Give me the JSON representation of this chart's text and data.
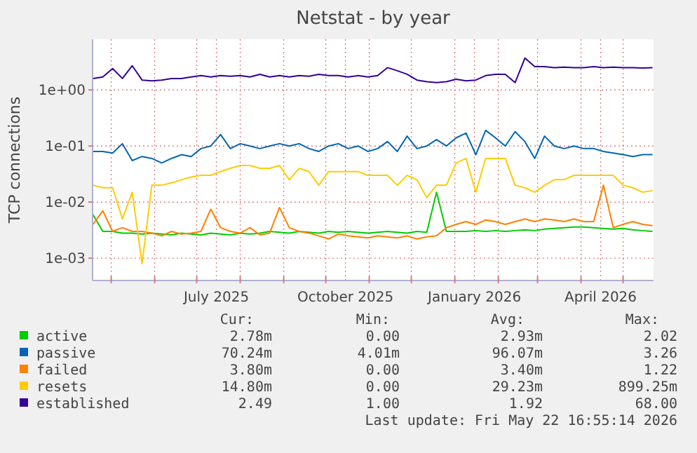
{
  "chart_data": {
    "type": "line",
    "title": "Netstat - by year",
    "ylabel": "TCP connections",
    "log": true,
    "grid": true,
    "legend": "bottom",
    "line_style": "solid",
    "marker": "none",
    "xlim": [
      "2025-04-17T16:55",
      "2026-05-22T16:55"
    ],
    "xticks": [
      {
        "value": "2025-05-01",
        "label": null
      },
      {
        "value": "2025-06-01",
        "label": null
      },
      {
        "value": "2025-07-01",
        "label": null
      },
      {
        "value": "2025-07-15",
        "label": "July 2025"
      },
      {
        "value": "2025-08-01",
        "label": null
      },
      {
        "value": "2025-09-01",
        "label": null
      },
      {
        "value": "2025-10-01",
        "label": null
      },
      {
        "value": "2025-10-15",
        "label": "October 2025"
      },
      {
        "value": "2025-11-01",
        "label": null
      },
      {
        "value": "2025-12-01",
        "label": null
      },
      {
        "value": "2026-01-01",
        "label": null
      },
      {
        "value": "2026-01-15",
        "label": "January 2026"
      },
      {
        "value": "2026-02-01",
        "label": null
      },
      {
        "value": "2026-03-01",
        "label": null
      },
      {
        "value": "2026-04-01",
        "label": null
      },
      {
        "value": "2026-04-15",
        "label": "April 2026"
      },
      {
        "value": "2026-05-01",
        "label": null
      }
    ],
    "ylim": [
      0.0004,
      8
    ],
    "yticks": [
      {
        "value": 0.001,
        "label": "1e-03"
      },
      {
        "value": 0.01,
        "label": "1e-02"
      },
      {
        "value": 0.1,
        "label": "1e-01"
      },
      {
        "value": 1,
        "label": "1e+00"
      }
    ],
    "x": [
      "2025-04-18",
      "2025-04-25",
      "2025-05-02",
      "2025-05-09",
      "2025-05-16",
      "2025-05-23",
      "2025-05-30",
      "2025-06-06",
      "2025-06-13",
      "2025-06-20",
      "2025-06-27",
      "2025-07-04",
      "2025-07-11",
      "2025-07-18",
      "2025-07-25",
      "2025-08-01",
      "2025-08-08",
      "2025-08-15",
      "2025-08-22",
      "2025-08-29",
      "2025-09-05",
      "2025-09-12",
      "2025-09-19",
      "2025-09-26",
      "2025-10-03",
      "2025-10-10",
      "2025-10-17",
      "2025-10-24",
      "2025-10-31",
      "2025-11-07",
      "2025-11-14",
      "2025-11-21",
      "2025-11-28",
      "2025-12-05",
      "2025-12-12",
      "2025-12-19",
      "2025-12-26",
      "2026-01-02",
      "2026-01-09",
      "2026-01-16",
      "2026-01-23",
      "2026-01-30",
      "2026-02-06",
      "2026-02-13",
      "2026-02-20",
      "2026-02-27",
      "2026-03-06",
      "2026-03-13",
      "2026-03-20",
      "2026-03-27",
      "2026-04-03",
      "2026-04-10",
      "2026-04-17",
      "2026-04-24",
      "2026-05-01",
      "2026-05-08",
      "2026-05-15",
      "2026-05-22"
    ],
    "series": [
      {
        "name": "active",
        "color": "#00cc00",
        "values": [
          0.006,
          0.003,
          0.003,
          0.0028,
          0.0028,
          0.0027,
          0.0028,
          0.0027,
          0.0026,
          0.0028,
          0.0027,
          0.0026,
          0.0028,
          0.0027,
          0.0026,
          0.0028,
          0.0027,
          0.0028,
          0.003,
          0.0029,
          0.0028,
          0.003,
          0.0029,
          0.0028,
          0.003,
          0.0029,
          0.003,
          0.0029,
          0.0028,
          0.0029,
          0.003,
          0.0029,
          0.0028,
          0.003,
          0.0029,
          0.015,
          0.003,
          0.003,
          0.003,
          0.0031,
          0.003,
          0.0031,
          0.003,
          0.0031,
          0.0032,
          0.0031,
          0.0033,
          0.0034,
          0.0035,
          0.0036,
          0.0036,
          0.0035,
          0.0034,
          0.0033,
          0.0034,
          0.0032,
          0.0031,
          0.003
        ]
      },
      {
        "name": "passive",
        "color": "#0066b3",
        "values": [
          0.08,
          0.08,
          0.075,
          0.11,
          0.055,
          0.065,
          0.06,
          0.05,
          0.06,
          0.07,
          0.065,
          0.09,
          0.1,
          0.16,
          0.09,
          0.11,
          0.1,
          0.09,
          0.1,
          0.11,
          0.1,
          0.11,
          0.09,
          0.08,
          0.1,
          0.11,
          0.09,
          0.1,
          0.08,
          0.09,
          0.12,
          0.08,
          0.15,
          0.09,
          0.1,
          0.13,
          0.1,
          0.14,
          0.17,
          0.07,
          0.19,
          0.14,
          0.1,
          0.18,
          0.12,
          0.06,
          0.15,
          0.1,
          0.09,
          0.1,
          0.09,
          0.09,
          0.08,
          0.075,
          0.07,
          0.065,
          0.07,
          0.07
        ]
      },
      {
        "name": "failed",
        "color": "#ff8000",
        "values": [
          0.004,
          0.007,
          0.003,
          0.0035,
          0.003,
          0.003,
          0.0028,
          0.0025,
          0.003,
          0.0027,
          0.0028,
          0.003,
          0.0075,
          0.0035,
          0.003,
          0.0028,
          0.0035,
          0.0026,
          0.0028,
          0.008,
          0.0035,
          0.003,
          0.0028,
          0.0025,
          0.0022,
          0.0027,
          0.0025,
          0.0024,
          0.0023,
          0.0025,
          0.0024,
          0.0023,
          0.0025,
          0.0022,
          0.0024,
          0.0025,
          0.0035,
          0.004,
          0.0045,
          0.004,
          0.0048,
          0.0045,
          0.004,
          0.0045,
          0.005,
          0.0045,
          0.005,
          0.0048,
          0.0045,
          0.005,
          0.0045,
          0.0045,
          0.02,
          0.0035,
          0.004,
          0.0045,
          0.004,
          0.0038
        ]
      },
      {
        "name": "resets",
        "color": "#ffcc00",
        "values": [
          0.02,
          0.018,
          0.018,
          0.005,
          0.015,
          0.0008,
          0.02,
          0.02,
          0.022,
          0.025,
          0.028,
          0.03,
          0.03,
          0.035,
          0.04,
          0.045,
          0.045,
          0.04,
          0.04,
          0.045,
          0.025,
          0.04,
          0.035,
          0.02,
          0.035,
          0.035,
          0.035,
          0.035,
          0.03,
          0.03,
          0.03,
          0.02,
          0.03,
          0.025,
          0.012,
          0.02,
          0.02,
          0.05,
          0.06,
          0.015,
          0.06,
          0.06,
          0.06,
          0.02,
          0.018,
          0.015,
          0.02,
          0.025,
          0.025,
          0.03,
          0.03,
          0.03,
          0.03,
          0.03,
          0.02,
          0.018,
          0.015,
          0.016
        ]
      },
      {
        "name": "established",
        "color": "#330099",
        "values": [
          1.6,
          1.7,
          2.4,
          1.6,
          2.7,
          1.5,
          1.45,
          1.5,
          1.6,
          1.6,
          1.7,
          1.8,
          1.7,
          1.8,
          1.75,
          1.8,
          1.7,
          1.9,
          1.7,
          1.8,
          1.7,
          1.8,
          1.75,
          1.9,
          1.8,
          1.8,
          1.7,
          1.8,
          1.7,
          1.8,
          2.5,
          2.2,
          1.9,
          1.5,
          1.4,
          1.35,
          1.4,
          1.55,
          1.45,
          1.5,
          1.8,
          1.9,
          1.9,
          1.35,
          3.7,
          2.6,
          2.6,
          2.5,
          2.55,
          2.5,
          2.5,
          2.6,
          2.5,
          2.55,
          2.5,
          2.5,
          2.45,
          2.5
        ]
      }
    ],
    "annotations": [
      "Cur:",
      "Min:",
      "Avg:",
      "Max:",
      "2.78m",
      "0.00",
      "2.93m",
      "2.02",
      "70.24m",
      "4.01m",
      "96.07m",
      "3.26",
      "3.80m",
      "0.00",
      "3.40m",
      "1.22",
      "14.80m",
      "0.00",
      "29.23m",
      "899.25m",
      "2.49",
      "1.00",
      "1.92",
      "68.00",
      "Last update: Fri May 22 16:55:14 2026"
    ]
  }
}
